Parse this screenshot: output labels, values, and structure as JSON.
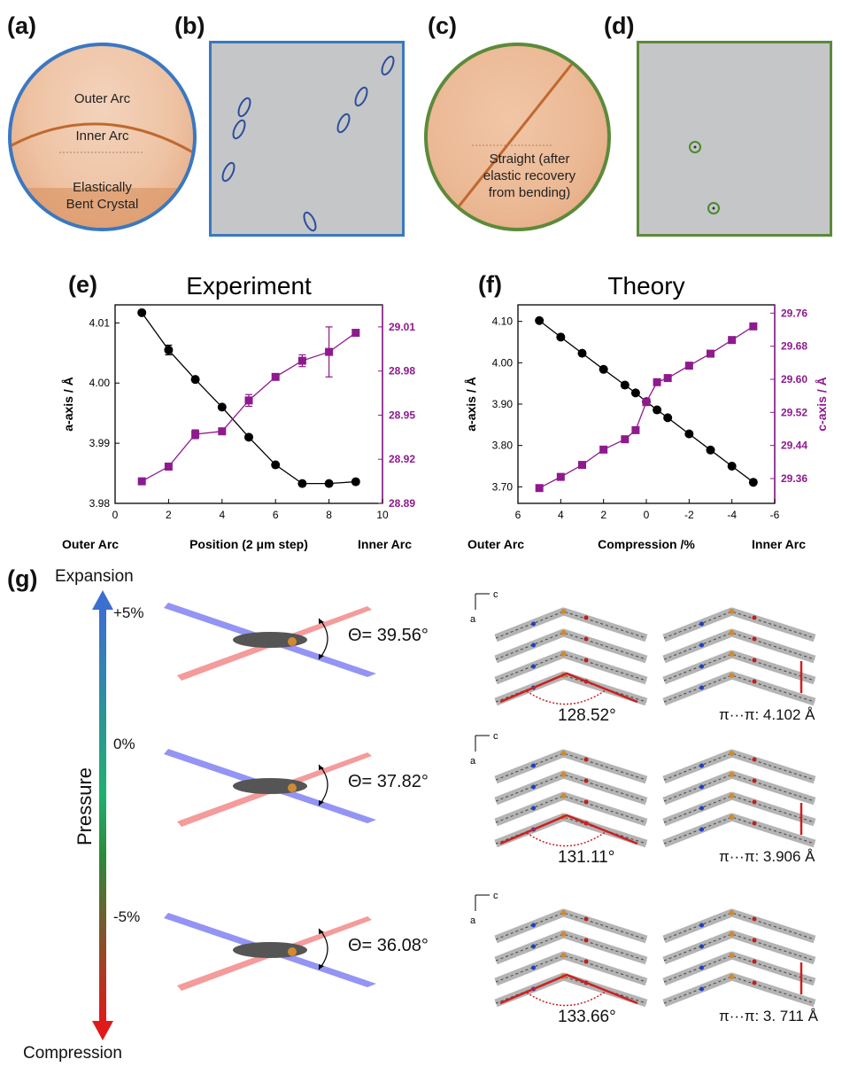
{
  "panels": {
    "a": {
      "label": "(a)",
      "outer": "Outer Arc",
      "inner": "Inner Arc",
      "bottom1": "Elastically",
      "bottom2": "Bent Crystal"
    },
    "b": {
      "label": "(b)"
    },
    "c": {
      "label": "(c)",
      "line1": "Straight (after",
      "line2": "elastic recovery",
      "line3": "from bending)"
    },
    "d": {
      "label": "(d)"
    },
    "e": {
      "label": "(e)"
    },
    "f": {
      "label": "(f)"
    },
    "g": {
      "label": "(g)"
    }
  },
  "colors": {
    "blue_frame": "#3a78c0",
    "green_frame": "#5c8a3a",
    "purple": "#8e1a8e",
    "black": "#000000",
    "crystal": "#e6b08a",
    "red": "#cc2020"
  },
  "chart_data": [
    {
      "type": "line",
      "title": "Experiment",
      "xlabel": "Position (2 μm step)",
      "xlabel_left": "Outer Arc",
      "xlabel_right": "Inner Arc",
      "ylabel_left": "a-axis / Å",
      "ylabel_right": "c-axis / Å",
      "xlim": [
        0,
        10
      ],
      "xticks": [
        "0",
        "2",
        "4",
        "6",
        "8",
        "10"
      ],
      "ylim_left": [
        3.98,
        4.013
      ],
      "yticks_left": [
        "3.98",
        "3.99",
        "4.00",
        "4.01"
      ],
      "ylim_right": [
        28.89,
        29.025
      ],
      "yticks_right": [
        "28.89",
        "28.92",
        "28.95",
        "28.98",
        "29.01"
      ],
      "series": [
        {
          "axis": "left",
          "color": "#000000",
          "marker": "circle",
          "x": [
            1,
            2,
            3,
            4,
            5,
            6,
            7,
            8,
            9
          ],
          "y": [
            4.0117,
            4.0055,
            4.0006,
            3.996,
            3.991,
            3.9864,
            3.9833,
            3.9833,
            3.9836
          ],
          "err": [
            0,
            0.0008,
            0,
            0,
            0,
            0,
            0,
            0,
            0
          ]
        },
        {
          "axis": "right",
          "color": "#8e1a8e",
          "marker": "square",
          "x": [
            1,
            2,
            3,
            4,
            5,
            6,
            7,
            8,
            9
          ],
          "y": [
            28.905,
            28.915,
            28.937,
            28.939,
            28.96,
            28.976,
            28.987,
            28.993,
            29.006
          ],
          "err": [
            0,
            0.002,
            0.003,
            0,
            0.004,
            0,
            0.004,
            0.017,
            0
          ]
        }
      ]
    },
    {
      "type": "line",
      "title": "Theory",
      "xlabel": "Compression /%",
      "xlabel_left": "Outer Arc",
      "xlabel_right": "Inner Arc",
      "ylabel_left": "a-axis / Å",
      "ylabel_right": "c-axis / Å",
      "xlim": [
        6,
        -6
      ],
      "xticks": [
        "6",
        "4",
        "2",
        "0",
        "-2",
        "-4",
        "-6"
      ],
      "ylim_left": [
        3.66,
        4.14
      ],
      "yticks_left": [
        "3.70",
        "3.80",
        "3.90",
        "4.00",
        "4.10"
      ],
      "ylim_right": [
        29.3,
        29.78
      ],
      "yticks_right": [
        "29.36",
        "29.44",
        "29.52",
        "29.60",
        "29.68",
        "29.76"
      ],
      "series": [
        {
          "axis": "left",
          "color": "#000000",
          "marker": "circle",
          "x": [
            5,
            4,
            3,
            2,
            1,
            0.5,
            0,
            -0.5,
            -1,
            -2,
            -3,
            -4,
            -5
          ],
          "y": [
            4.102,
            4.062,
            4.023,
            3.984,
            3.946,
            3.927,
            3.906,
            3.886,
            3.867,
            3.828,
            3.789,
            3.75,
            3.711
          ]
        },
        {
          "axis": "right",
          "color": "#8e1a8e",
          "marker": "square",
          "x": [
            5,
            4,
            3,
            2,
            1,
            0.5,
            0,
            -0.5,
            -1,
            -2,
            -3,
            -4,
            -5
          ],
          "y": [
            29.337,
            29.364,
            29.393,
            29.43,
            29.455,
            29.477,
            29.545,
            29.593,
            29.603,
            29.633,
            29.662,
            29.695,
            29.728
          ]
        }
      ]
    }
  ],
  "panel_g": {
    "top_label": "Expansion",
    "bottom_label": "Compression",
    "axis_label": "Pressure",
    "rows": [
      {
        "strain": "+5%",
        "theta": "Θ= 39.56°",
        "angle": "128.52°",
        "stack": "π···π: 4.102 Å"
      },
      {
        "strain": "0%",
        "theta": "Θ= 37.82°",
        "angle": "131.11°",
        "stack": "π···π: 3.906 Å"
      },
      {
        "strain": "-5%",
        "theta": "Θ= 36.08°",
        "angle": "133.66°",
        "stack": "π···π: 3. 711 Å"
      }
    ],
    "axis_c": "c",
    "axis_a": "a"
  }
}
